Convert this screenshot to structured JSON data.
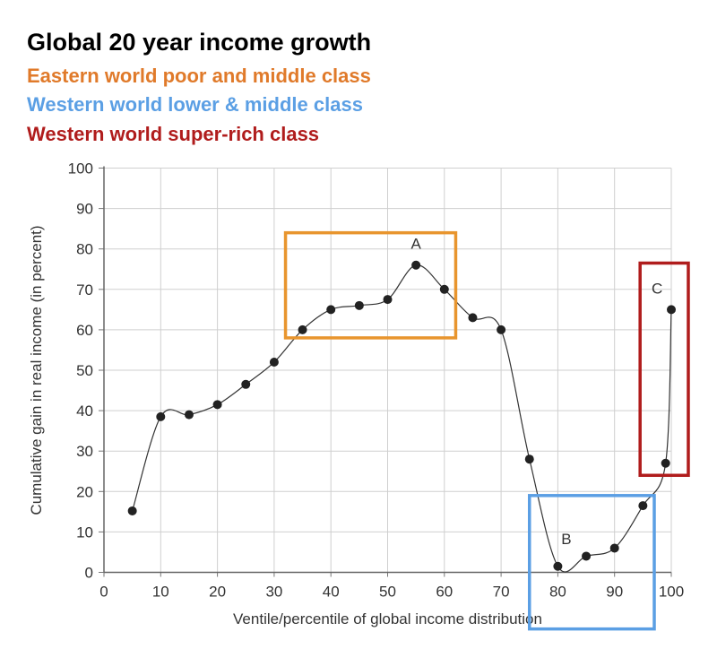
{
  "chart_data": {
    "type": "line",
    "title": "Global 20 year income growth",
    "subtitles": [
      {
        "text": "Eastern world poor and middle class",
        "color": "#e07a2a"
      },
      {
        "text": "Western world lower & middle class",
        "color": "#5b9fe4"
      },
      {
        "text": "Western world super-rich class",
        "color": "#b01c1c"
      }
    ],
    "xlabel": "Ventile/percentile of global income distribution",
    "ylabel": "Cumulative gain in real income (in percent)",
    "xlim": [
      0,
      100
    ],
    "ylim": [
      0,
      100
    ],
    "xticks": [
      "0",
      "10",
      "20",
      "30",
      "40",
      "50",
      "60",
      "70",
      "80",
      "90",
      "100"
    ],
    "yticks": [
      "0",
      "10",
      "20",
      "30",
      "40",
      "50",
      "60",
      "70",
      "80",
      "90",
      "100"
    ],
    "grid": true,
    "x": [
      5,
      10,
      15,
      20,
      25,
      30,
      35,
      40,
      45,
      50,
      55,
      60,
      65,
      70,
      75,
      80,
      85,
      90,
      95,
      99,
      100
    ],
    "y": [
      15.2,
      38.5,
      39,
      41.5,
      46.5,
      52,
      60,
      65,
      66,
      67.5,
      76,
      70,
      63,
      60,
      28,
      1.5,
      4,
      6,
      16.5,
      27,
      65
    ],
    "annotations": [
      {
        "text": "A",
        "x": 55,
        "y": 80
      },
      {
        "text": "B",
        "x": 81.5,
        "y": 7
      },
      {
        "text": "C",
        "x": 97.5,
        "y": 69
      }
    ],
    "highlight_boxes": [
      {
        "label": "Eastern world poor and middle class",
        "x": [
          32,
          62
        ],
        "y": [
          58,
          84
        ],
        "color": "#e8952e"
      },
      {
        "label": "Western world lower & middle class",
        "x": [
          75,
          97
        ],
        "y": [
          -14,
          19
        ],
        "color": "#5b9fe4"
      },
      {
        "label": "Western world super-rich class",
        "x": [
          94.5,
          103
        ],
        "y": [
          24,
          76.5
        ],
        "color": "#b01c1c"
      }
    ]
  }
}
